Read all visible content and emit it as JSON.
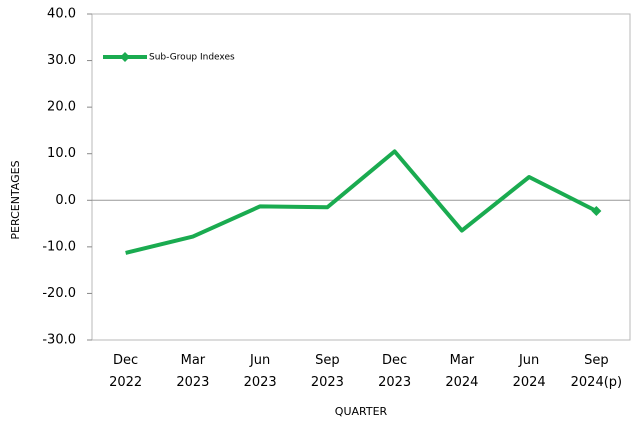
{
  "chart_data": {
    "type": "line",
    "x_label": "QUARTER",
    "y_label": "PERCENTAGES",
    "categories": [
      "Dec 2022",
      "Mar 2023",
      "Jun 2023",
      "Sep 2023",
      "Dec 2023",
      "Mar 2024",
      "Jun 2024",
      "Sep 2024(p)"
    ],
    "series": [
      {
        "name": "Sub-Group Indexes",
        "color": "#1aab50",
        "values": [
          -11.3,
          -7.8,
          -1.3,
          -1.5,
          10.5,
          -6.5,
          5.0,
          -2.3
        ]
      }
    ],
    "ylim": [
      -30,
      40
    ],
    "yticks": [
      {
        "value": 40,
        "label": "40.0"
      },
      {
        "value": 30,
        "label": "30.0"
      },
      {
        "value": 20,
        "label": "20.0"
      },
      {
        "value": 10,
        "label": "10.0"
      },
      {
        "value": 0,
        "label": "0.0"
      },
      {
        "value": -10,
        "label": "-10.0"
      },
      {
        "value": -20,
        "label": "-20.0"
      },
      {
        "value": -30,
        "label": "-30.0"
      }
    ],
    "legend": "upper left"
  }
}
